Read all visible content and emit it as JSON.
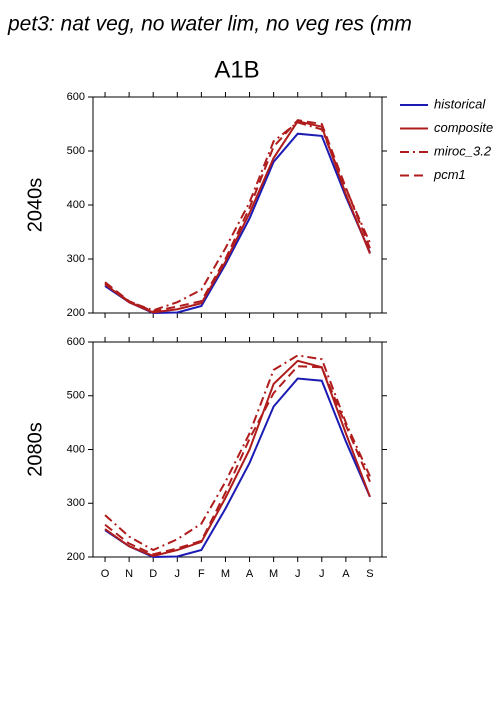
{
  "title": "pet3: nat veg, no water lim, no veg res (mm",
  "subtitle": "A1B",
  "chart_data": [
    {
      "type": "line",
      "ylabel": "2040s",
      "categories": [
        null,
        null,
        null,
        null,
        null,
        null,
        null,
        null,
        null,
        null,
        null,
        null
      ],
      "ylim": [
        200,
        600
      ],
      "yticks": [
        200,
        300,
        400,
        500,
        600
      ],
      "series": [
        {
          "name": "historical",
          "color": "#1c1cb4",
          "dash": "solid",
          "values": [
            250,
            220,
            200,
            201,
            213,
            290,
            375,
            480,
            532,
            528,
            415,
            312
          ]
        },
        {
          "name": "composite",
          "color": "#b01c1c",
          "dash": "solid",
          "values": [
            253,
            220,
            201,
            207,
            218,
            295,
            385,
            487,
            555,
            545,
            420,
            310
          ]
        },
        {
          "name": "miroc_3.2",
          "color": "#b01c1c",
          "dash": "dashdot",
          "values": [
            255,
            221,
            205,
            220,
            243,
            320,
            405,
            518,
            553,
            540,
            430,
            330
          ]
        },
        {
          "name": "pcm1",
          "color": "#b01c1c",
          "dash": "dash",
          "values": [
            257,
            222,
            203,
            212,
            222,
            300,
            395,
            508,
            557,
            550,
            432,
            320
          ]
        }
      ]
    },
    {
      "type": "line",
      "ylabel": "2080s",
      "categories": [
        "O",
        "N",
        "D",
        "J",
        "F",
        "M",
        "A",
        "M",
        "J",
        "J",
        "A",
        "S"
      ],
      "ylim": [
        200,
        600
      ],
      "yticks": [
        200,
        300,
        400,
        500,
        600
      ],
      "series": [
        {
          "name": "historical",
          "color": "#1c1cb4",
          "dash": "solid",
          "values": [
            250,
            220,
            200,
            201,
            213,
            290,
            375,
            480,
            532,
            528,
            415,
            312
          ]
        },
        {
          "name": "composite",
          "color": "#b01c1c",
          "dash": "solid",
          "values": [
            252,
            220,
            202,
            213,
            228,
            310,
            400,
            522,
            565,
            553,
            430,
            312
          ]
        },
        {
          "name": "miroc_3.2",
          "color": "#b01c1c",
          "dash": "dashdot",
          "values": [
            278,
            238,
            213,
            233,
            262,
            340,
            430,
            548,
            575,
            568,
            450,
            350
          ]
        },
        {
          "name": "pcm1",
          "color": "#b01c1c",
          "dash": "dash",
          "values": [
            260,
            225,
            205,
            216,
            230,
            320,
            420,
            505,
            555,
            553,
            445,
            340
          ]
        }
      ]
    }
  ]
}
